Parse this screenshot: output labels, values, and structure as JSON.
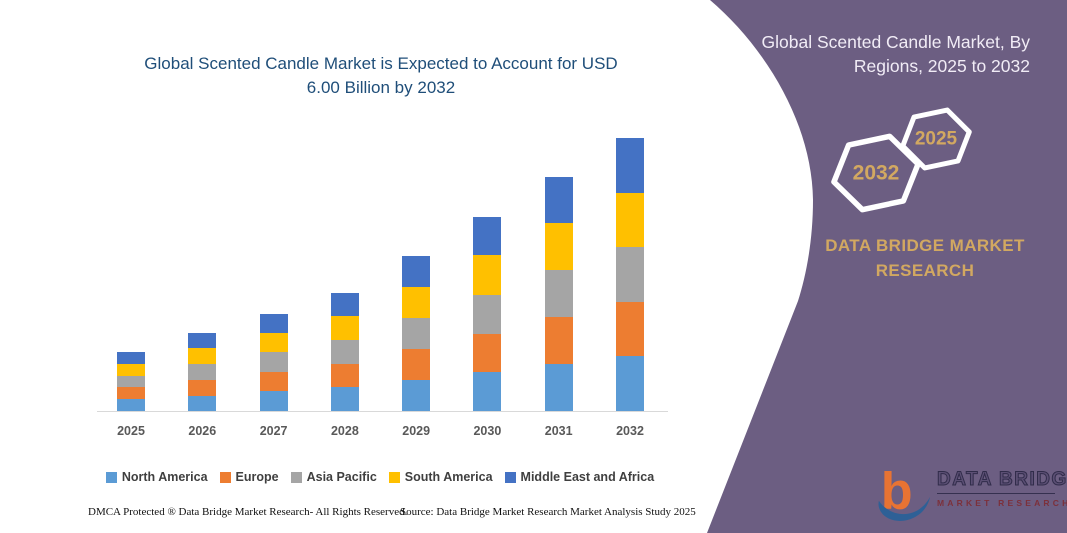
{
  "left": {
    "title_line1": "Global Scented Candle Market is Expected to Account for USD",
    "title_line2": "6.00 Billion by 2032",
    "footer_left": "DMCA Protected ® Data Bridge Market Research-  All Rights Reserved.",
    "footer_right": "Source: Data Bridge Market Research  Market Analysis Study 2025"
  },
  "right": {
    "title_line1": "Global Scented Candle Market, By",
    "title_line2": "Regions, 2025 to 2032",
    "hexagon_back_label": "2025",
    "hexagon_front_label": "2032",
    "brand_line1": "DATA BRIDGE MARKET",
    "brand_line2": "RESEARCH",
    "logo": {
      "glyph": "b",
      "text_main": "DATA BRIDGE",
      "text_sub": "MARKET RESEARCH"
    }
  },
  "colors": {
    "purple_panel": "#6C5E82",
    "chart_title_blue": "#1F4E79",
    "gold_accent": "#D2A861",
    "axis_label_gray": "#595959",
    "legend_text_gray": "#3F3F3F",
    "axis_line_gray": "#D9D9D9",
    "logo_orange": "#E87333",
    "logo_blue": "#2E6096"
  },
  "chart_data": {
    "type": "bar",
    "stacked": true,
    "title": "Global Scented Candle Market is Expected to Account for USD 6.00 Billion by 2032",
    "unit": "USD Billion",
    "xlabel": "",
    "ylabel": "",
    "ylim": [
      0,
      6.5
    ],
    "grid": false,
    "value_axis_visible": false,
    "legend_position": "bottom",
    "categories": [
      "2025",
      "2026",
      "2027",
      "2028",
      "2029",
      "2030",
      "2031",
      "2032"
    ],
    "series": [
      {
        "name": "North America",
        "color": "#5B9BD5",
        "values": [
          0.26,
          0.34,
          0.43,
          0.52,
          0.68,
          0.85,
          1.03,
          1.2
        ]
      },
      {
        "name": "Europe",
        "color": "#ED7D31",
        "values": [
          0.26,
          0.34,
          0.43,
          0.52,
          0.68,
          0.85,
          1.03,
          1.2
        ]
      },
      {
        "name": "Asia Pacific",
        "color": "#A5A5A5",
        "values": [
          0.26,
          0.35,
          0.43,
          0.52,
          0.68,
          0.86,
          1.03,
          1.2
        ]
      },
      {
        "name": "South America",
        "color": "#FFC000",
        "values": [
          0.26,
          0.35,
          0.43,
          0.52,
          0.69,
          0.86,
          1.03,
          1.2
        ]
      },
      {
        "name": "Middle East and Africa",
        "color": "#4472C4",
        "values": [
          0.25,
          0.34,
          0.42,
          0.51,
          0.68,
          0.85,
          1.02,
          1.2
        ]
      }
    ],
    "totals": [
      1.29,
      1.72,
      2.14,
      2.59,
      3.41,
      4.27,
      5.14,
      6.0
    ]
  }
}
